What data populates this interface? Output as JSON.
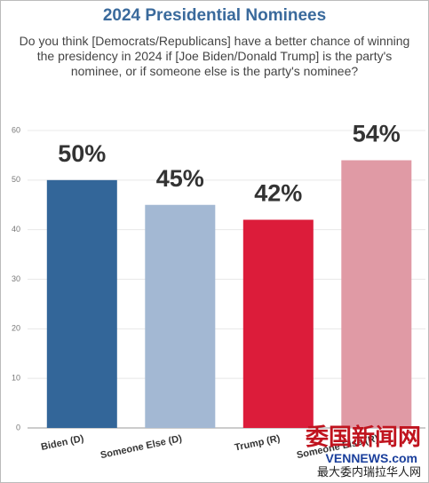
{
  "chart_data": {
    "type": "bar",
    "title": "2024 Presidential Nominees",
    "subtitle": "Do you think [Democrats/Republicans] have a better chance of winning the presidency in 2024 if [Joe Biden/Donald Trump] is the party's nominee, or if someone else is the party's nominee?",
    "categories": [
      "Biden (D)",
      "Someone Else (D)",
      "Trump (R)",
      "Someone Else (R)"
    ],
    "values": [
      50,
      45,
      42,
      54
    ],
    "value_labels": [
      "50%",
      "45%",
      "42%",
      "54%"
    ],
    "colors": [
      "#336699",
      "#a3b8d3",
      "#dc1c3a",
      "#e09aa5"
    ],
    "ylim": [
      0,
      60
    ],
    "yticks": [
      0,
      10,
      20,
      30,
      40,
      50,
      60
    ],
    "grid": true
  },
  "watermark": {
    "name": "委国新闻网",
    "site": "VENNEWS.com",
    "slogan": "最大委内瑞拉华人网"
  }
}
